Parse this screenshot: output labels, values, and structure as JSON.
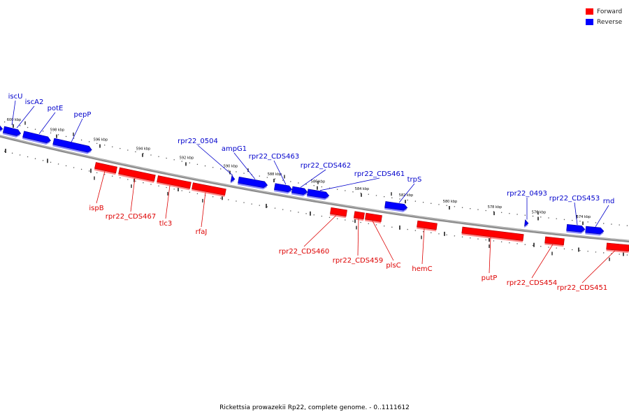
{
  "legend": {
    "forward_label": "Forward",
    "reverse_label": "Reverse",
    "forward_color": "#ff0000",
    "reverse_color": "#0000ff"
  },
  "caption": "Rickettsia prowazekii Rp22, complete genome. - 0..1111612",
  "scale": {
    "unit": "kbp",
    "ticks": [
      {
        "label": "600 kbp",
        "kbp": 600
      },
      {
        "label": "598 kbp",
        "kbp": 598
      },
      {
        "label": "596 kbp",
        "kbp": 596
      },
      {
        "label": "594 kbp",
        "kbp": 594
      },
      {
        "label": "592 kbp",
        "kbp": 592
      },
      {
        "label": "590 kbp",
        "kbp": 590
      },
      {
        "label": "588 kbp",
        "kbp": 588
      },
      {
        "label": "586 kbp",
        "kbp": 586
      },
      {
        "label": "584 kbp",
        "kbp": 584
      },
      {
        "label": "582 kbp",
        "kbp": 582
      },
      {
        "label": "580 kbp",
        "kbp": 580
      },
      {
        "label": "578 kbp",
        "kbp": 578
      },
      {
        "label": "576 kbp",
        "kbp": 576
      },
      {
        "label": "574 kbp",
        "kbp": 574
      }
    ]
  },
  "genes": [
    {
      "name": "iscU",
      "strand": "reverse"
    },
    {
      "name": "iscA2",
      "strand": "reverse"
    },
    {
      "name": "potE",
      "strand": "reverse"
    },
    {
      "name": "pepP",
      "strand": "reverse"
    },
    {
      "name": "rpr22_0504",
      "strand": "reverse"
    },
    {
      "name": "ampG1",
      "strand": "reverse"
    },
    {
      "name": "rpr22_CDS463",
      "strand": "reverse"
    },
    {
      "name": "rpr22_CDS462",
      "strand": "reverse"
    },
    {
      "name": "rpr22_CDS461",
      "strand": "reverse"
    },
    {
      "name": "trpS",
      "strand": "reverse"
    },
    {
      "name": "rpr22_0493",
      "strand": "reverse"
    },
    {
      "name": "rpr22_CDS453",
      "strand": "reverse"
    },
    {
      "name": "rnd",
      "strand": "reverse"
    },
    {
      "name": "ispB",
      "strand": "forward"
    },
    {
      "name": "rpr22_CDS467",
      "strand": "forward"
    },
    {
      "name": "tlc3",
      "strand": "forward"
    },
    {
      "name": "rfaJ",
      "strand": "forward"
    },
    {
      "name": "rpr22_CDS460",
      "strand": "forward"
    },
    {
      "name": "rpr22_CDS459",
      "strand": "forward"
    },
    {
      "name": "plsC",
      "strand": "forward"
    },
    {
      "name": "hemC",
      "strand": "forward"
    },
    {
      "name": "putP",
      "strand": "forward"
    },
    {
      "name": "rpr22_CDS454",
      "strand": "forward"
    },
    {
      "name": "rpr22_CDS451",
      "strand": "forward"
    }
  ]
}
